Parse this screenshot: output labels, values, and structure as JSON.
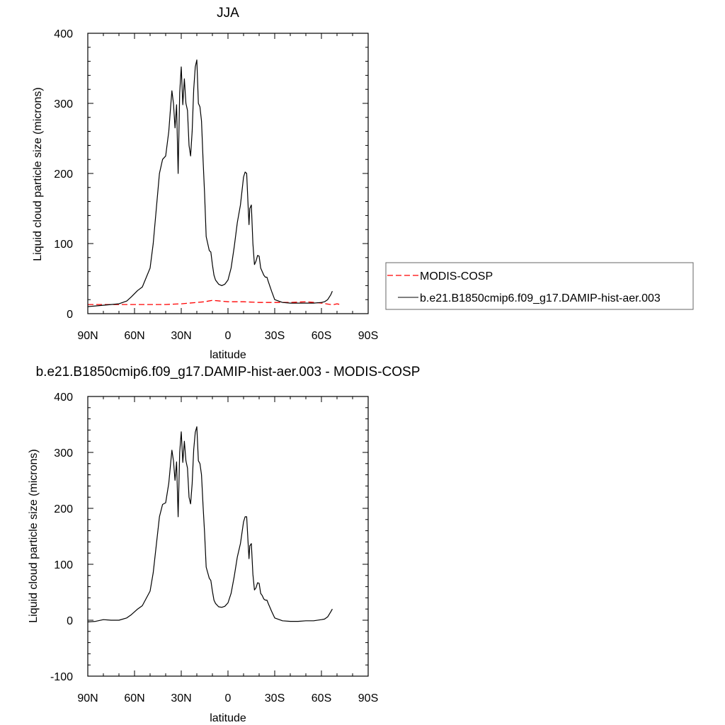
{
  "chart_data": [
    {
      "type": "line",
      "title": "JJA",
      "xlabel": "latitude",
      "ylabel": "Liquid cloud particle size (microns)",
      "xlim": [
        90,
        -90
      ],
      "ylim": [
        0,
        400
      ],
      "x_ticks": [
        90,
        60,
        30,
        0,
        -30,
        -60,
        -90
      ],
      "x_tick_labels": [
        "90N",
        "60N",
        "30N",
        "0",
        "30S",
        "60S",
        "90S"
      ],
      "y_ticks": [
        0,
        100,
        200,
        300,
        400
      ],
      "y_tick_labels": [
        "0",
        "100",
        "200",
        "300",
        "400"
      ],
      "grid": false,
      "legend": {
        "position": "right",
        "entries": [
          "MODIS-COSP",
          "b.e21.B1850cmip6.f09_g17.DAMIP-hist-aer.003"
        ]
      },
      "series": [
        {
          "name": "MODIS-COSP",
          "color": "#ff0000",
          "dash": true,
          "x": [
            90,
            80,
            70,
            60,
            50,
            40,
            30,
            20,
            15,
            10,
            5,
            0,
            -10,
            -20,
            -30,
            -40,
            -50,
            -60,
            -63,
            -66,
            -68,
            -70,
            -72
          ],
          "y": [
            13,
            13,
            13,
            13,
            13,
            13,
            14,
            16,
            17,
            19,
            18,
            17,
            17,
            16,
            16,
            16,
            17,
            15,
            14,
            13,
            13,
            14,
            13
          ]
        },
        {
          "name": "b.e21.B1850cmip6.f09_g17.DAMIP-hist-aer.003",
          "color": "#000000",
          "dash": false,
          "x": [
            90,
            85,
            80,
            75,
            70,
            65,
            62,
            58,
            55,
            50,
            48,
            46,
            44,
            42,
            40,
            38,
            37,
            36,
            35,
            34,
            33,
            32,
            31,
            30,
            29,
            28,
            27,
            26,
            25,
            24,
            23,
            22,
            21,
            20,
            19,
            18,
            17,
            16,
            15,
            14,
            13,
            12,
            11,
            10,
            9,
            8,
            6,
            4,
            2,
            0,
            -2,
            -4,
            -6,
            -8,
            -10,
            -11,
            -12,
            -13,
            -13.5,
            -14,
            -15,
            -16,
            -17,
            -18,
            -19,
            -20,
            -21,
            -22,
            -23,
            -24,
            -25,
            -26,
            -28,
            -30,
            -35,
            -40,
            -45,
            -50,
            -55,
            -60,
            -62,
            -64,
            -66,
            -67
          ],
          "y": [
            10,
            11,
            12,
            13,
            14,
            18,
            24,
            33,
            38,
            65,
            100,
            150,
            200,
            220,
            225,
            260,
            290,
            318,
            300,
            265,
            298,
            200,
            315,
            352,
            298,
            335,
            300,
            290,
            240,
            225,
            260,
            320,
            352,
            362,
            300,
            295,
            275,
            220,
            170,
            110,
            100,
            90,
            88,
            70,
            55,
            48,
            42,
            40,
            42,
            48,
            65,
            95,
            130,
            155,
            195,
            202,
            200,
            150,
            127,
            150,
            155,
            100,
            70,
            75,
            83,
            82,
            65,
            60,
            55,
            52,
            52,
            45,
            32,
            20,
            16,
            15,
            15,
            15,
            15,
            16,
            17,
            20,
            27,
            32
          ]
        }
      ]
    },
    {
      "type": "line",
      "title": "b.e21.B1850cmip6.f09_g17.DAMIP-hist-aer.003 - MODIS-COSP",
      "xlabel": "latitude",
      "ylabel": "Liquid cloud particle size (microns)",
      "xlim": [
        90,
        -90
      ],
      "ylim": [
        -100,
        400
      ],
      "x_ticks": [
        90,
        60,
        30,
        0,
        -30,
        -60,
        -90
      ],
      "x_tick_labels": [
        "90N",
        "60N",
        "30N",
        "0",
        "30S",
        "60S",
        "90S"
      ],
      "y_ticks": [
        -100,
        0,
        100,
        200,
        300,
        400
      ],
      "y_tick_labels": [
        "-100",
        "0",
        "100",
        "200",
        "300",
        "400"
      ],
      "grid": false,
      "series": [
        {
          "color": "#000000",
          "dash": false,
          "x": [
            90,
            85,
            80,
            75,
            70,
            65,
            62,
            58,
            55,
            50,
            48,
            46,
            44,
            42,
            40,
            38,
            37,
            36,
            35,
            34,
            33,
            32,
            31,
            30,
            29,
            28,
            27,
            26,
            25,
            24,
            23,
            22,
            21,
            20,
            19,
            18,
            17,
            16,
            15,
            14,
            13,
            12,
            11,
            10,
            9,
            8,
            6,
            4,
            2,
            0,
            -2,
            -4,
            -6,
            -8,
            -10,
            -11,
            -12,
            -13,
            -13.5,
            -14,
            -15,
            -16,
            -17,
            -18,
            -19,
            -20,
            -21,
            -22,
            -23,
            -24,
            -25,
            -26,
            -28,
            -30,
            -35,
            -40,
            -45,
            -50,
            -55,
            -60,
            -62,
            -64,
            -66,
            -67
          ],
          "y": [
            -3,
            -2,
            1,
            0,
            0,
            4,
            10,
            20,
            26,
            52,
            85,
            135,
            185,
            207,
            210,
            245,
            275,
            304,
            285,
            250,
            283,
            185,
            300,
            337,
            282,
            320,
            285,
            272,
            220,
            208,
            244,
            305,
            336,
            346,
            285,
            280,
            260,
            205,
            155,
            95,
            85,
            75,
            71,
            52,
            36,
            30,
            24,
            23,
            25,
            31,
            48,
            78,
            113,
            137,
            176,
            185,
            185,
            134,
            110,
            133,
            137,
            82,
            54,
            58,
            67,
            66,
            48,
            44,
            38,
            36,
            36,
            29,
            16,
            4,
            -1,
            -2,
            -2,
            -1,
            -1,
            1,
            2,
            6,
            15,
            20
          ]
        }
      ]
    }
  ]
}
